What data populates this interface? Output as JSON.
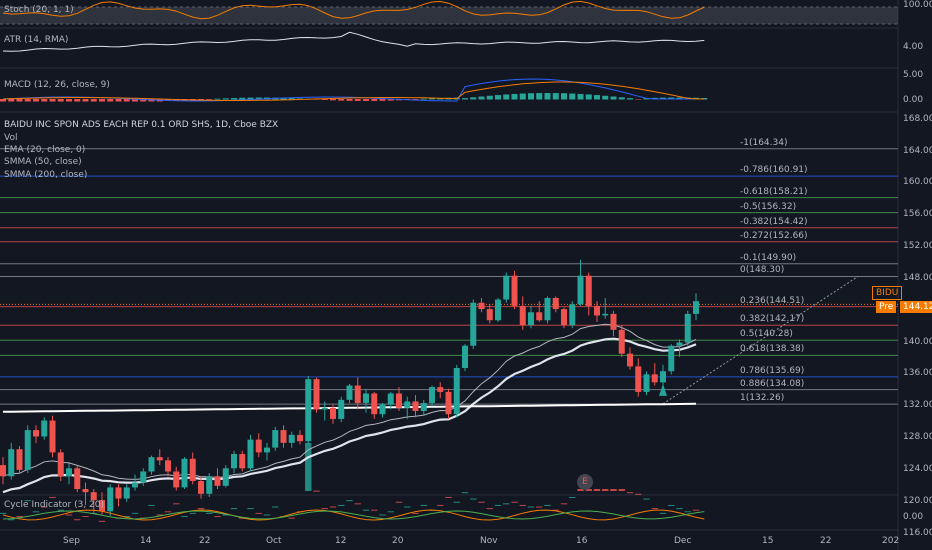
{
  "chart_data": {
    "type": "candlestick",
    "title": "BAIDU INC SPON ADS EACH REP 0.1 ORD SHS, 1D, Cboe BZX",
    "series_labels": [
      "Vol",
      "EMA (20, close, 0)",
      "SMMA (50, close)",
      "SMMA (200, close)"
    ],
    "price_axis": {
      "min": 114,
      "max": 170,
      "ticks": [
        "168.00",
        "164.00",
        "160.00",
        "156.00",
        "152.00",
        "148.00",
        "144.00",
        "140.00",
        "136.00",
        "132.00",
        "128.00",
        "124.00",
        "120.00",
        "116.00"
      ]
    },
    "x_ticks": [
      "Sep",
      "14",
      "22",
      "Oct",
      "12",
      "20",
      "Nov",
      "16",
      "Dec",
      "15",
      "22",
      "202"
    ],
    "ohlc": [
      [
        124.6,
        125.6,
        122.2,
        123.2
      ],
      [
        123.2,
        127.4,
        122.8,
        126.6
      ],
      [
        126.6,
        127.0,
        123.6,
        124.0
      ],
      [
        124.0,
        129.6,
        123.6,
        129.0
      ],
      [
        129.0,
        129.6,
        127.4,
        128.2
      ],
      [
        128.2,
        130.6,
        127.8,
        130.2
      ],
      [
        130.2,
        130.8,
        125.6,
        126.2
      ],
      [
        126.2,
        126.6,
        122.6,
        123.2
      ],
      [
        123.2,
        124.8,
        122.2,
        124.2
      ],
      [
        124.2,
        124.6,
        121.2,
        121.6
      ],
      [
        121.6,
        122.4,
        119.6,
        121.2
      ],
      [
        121.2,
        121.6,
        118.6,
        120.2
      ],
      [
        120.2,
        121.2,
        118.4,
        118.8
      ],
      [
        118.8,
        122.2,
        118.2,
        121.8
      ],
      [
        121.8,
        122.2,
        119.4,
        120.4
      ],
      [
        120.4,
        122.2,
        120.0,
        121.8
      ],
      [
        121.8,
        123.4,
        121.4,
        122.4
      ],
      [
        122.4,
        124.2,
        122.0,
        123.8
      ],
      [
        123.8,
        125.8,
        123.4,
        125.6
      ],
      [
        125.6,
        126.6,
        124.6,
        125.2
      ],
      [
        125.2,
        125.6,
        123.2,
        123.8
      ],
      [
        123.8,
        124.4,
        121.4,
        121.8
      ],
      [
        121.8,
        125.6,
        121.6,
        125.4
      ],
      [
        125.4,
        126.2,
        122.2,
        122.6
      ],
      [
        122.6,
        123.2,
        120.4,
        121.0
      ],
      [
        121.0,
        123.6,
        120.6,
        123.2
      ],
      [
        123.2,
        124.2,
        121.6,
        122.0
      ],
      [
        122.0,
        124.6,
        121.8,
        124.2
      ],
      [
        124.2,
        126.4,
        123.6,
        126.0
      ],
      [
        126.0,
        126.4,
        123.8,
        124.2
      ],
      [
        124.2,
        128.4,
        123.8,
        127.8
      ],
      [
        127.8,
        128.6,
        125.6,
        126.2
      ],
      [
        126.2,
        127.4,
        125.2,
        126.8
      ],
      [
        126.8,
        129.4,
        126.4,
        129.0
      ],
      [
        129.0,
        129.6,
        126.8,
        127.4
      ],
      [
        127.4,
        128.8,
        126.8,
        128.4
      ],
      [
        128.4,
        129.0,
        127.2,
        127.6
      ],
      [
        127.6,
        135.8,
        127.2,
        135.4
      ],
      [
        135.4,
        135.6,
        131.2,
        131.6
      ],
      [
        131.6,
        132.6,
        130.2,
        131.8
      ],
      [
        131.8,
        132.2,
        129.8,
        130.4
      ],
      [
        130.4,
        133.2,
        130.0,
        132.8
      ],
      [
        132.8,
        134.8,
        132.4,
        134.6
      ],
      [
        134.6,
        135.6,
        131.6,
        132.4
      ],
      [
        132.4,
        134.2,
        131.2,
        133.6
      ],
      [
        133.6,
        133.8,
        130.4,
        131.0
      ],
      [
        131.0,
        132.4,
        130.6,
        132.2
      ],
      [
        132.2,
        133.8,
        131.6,
        133.6
      ],
      [
        133.6,
        134.4,
        131.4,
        131.8
      ],
      [
        131.8,
        133.2,
        130.4,
        132.6
      ],
      [
        132.6,
        133.4,
        130.6,
        131.4
      ],
      [
        131.4,
        132.8,
        130.8,
        132.4
      ],
      [
        132.4,
        134.6,
        132.0,
        134.4
      ],
      [
        134.4,
        135.0,
        133.0,
        133.8
      ],
      [
        133.8,
        134.2,
        130.4,
        131.0
      ],
      [
        131.0,
        137.2,
        130.6,
        136.8
      ],
      [
        136.8,
        139.8,
        136.4,
        139.6
      ],
      [
        139.6,
        145.4,
        139.2,
        145.0
      ],
      [
        145.0,
        145.6,
        143.8,
        144.2
      ],
      [
        144.2,
        144.8,
        142.4,
        142.8
      ],
      [
        142.8,
        145.6,
        142.6,
        145.4
      ],
      [
        145.4,
        148.8,
        145.0,
        148.4
      ],
      [
        148.4,
        149.0,
        144.2,
        144.6
      ],
      [
        144.6,
        145.8,
        141.6,
        142.2
      ],
      [
        142.2,
        144.6,
        141.8,
        143.8
      ],
      [
        143.8,
        145.2,
        142.6,
        142.8
      ],
      [
        142.8,
        145.8,
        142.4,
        145.6
      ],
      [
        145.6,
        145.8,
        143.8,
        144.2
      ],
      [
        144.2,
        144.4,
        141.8,
        142.2
      ],
      [
        142.2,
        145.2,
        141.8,
        144.8
      ],
      [
        144.8,
        150.4,
        144.6,
        148.4
      ],
      [
        148.4,
        148.8,
        143.4,
        144.6
      ],
      [
        144.6,
        145.2,
        142.6,
        143.4
      ],
      [
        143.4,
        145.6,
        143.0,
        143.6
      ],
      [
        143.6,
        144.0,
        140.8,
        141.6
      ],
      [
        141.6,
        142.2,
        138.2,
        138.6
      ],
      [
        138.6,
        139.4,
        136.6,
        137.0
      ],
      [
        137.0,
        138.0,
        133.2,
        133.8
      ],
      [
        133.8,
        136.4,
        133.4,
        136.0
      ],
      [
        136.0,
        137.4,
        134.6,
        135.0
      ],
      [
        135.0,
        137.2,
        134.2,
        136.4
      ],
      [
        136.4,
        139.8,
        136.0,
        139.6
      ],
      [
        139.6,
        140.4,
        138.2,
        140.0
      ],
      [
        140.0,
        144.0,
        139.6,
        143.6
      ],
      [
        143.6,
        146.2,
        142.8,
        145.2
      ]
    ],
    "volume": [
      [
        118.6,
        true
      ],
      [
        117.8,
        true
      ],
      [
        118.2,
        false
      ],
      [
        120.2,
        true
      ],
      [
        118.8,
        true
      ],
      [
        119.4,
        false
      ],
      [
        120.6,
        false
      ],
      [
        119.0,
        true
      ],
      [
        118.4,
        false
      ],
      [
        117.8,
        false
      ],
      [
        118.2,
        false
      ],
      [
        118.6,
        true
      ],
      [
        117.6,
        false
      ],
      [
        119.4,
        true
      ],
      [
        118.0,
        false
      ],
      [
        118.2,
        true
      ],
      [
        118.6,
        true
      ],
      [
        118.0,
        false
      ],
      [
        119.6,
        true
      ],
      [
        118.4,
        false
      ],
      [
        118.8,
        false
      ],
      [
        119.8,
        false
      ],
      [
        118.2,
        true
      ],
      [
        118.6,
        true
      ],
      [
        119.2,
        false
      ],
      [
        118.6,
        true
      ],
      [
        118.2,
        false
      ],
      [
        118.4,
        true
      ],
      [
        119.2,
        true
      ],
      [
        118.0,
        false
      ],
      [
        119.2,
        true
      ],
      [
        118.6,
        false
      ],
      [
        118.4,
        true
      ],
      [
        119.4,
        true
      ],
      [
        118.2,
        false
      ],
      [
        118.0,
        false
      ],
      [
        118.8,
        false
      ],
      [
        127.4,
        true
      ],
      [
        121.4,
        false
      ],
      [
        119.2,
        false
      ],
      [
        119.4,
        false
      ],
      [
        119.6,
        true
      ],
      [
        120.2,
        true
      ],
      [
        119.8,
        false
      ],
      [
        119.0,
        true
      ],
      [
        119.0,
        false
      ],
      [
        118.4,
        true
      ],
      [
        118.8,
        true
      ],
      [
        120.0,
        false
      ],
      [
        119.4,
        true
      ],
      [
        118.6,
        false
      ],
      [
        119.6,
        true
      ],
      [
        119.0,
        true
      ],
      [
        119.6,
        false
      ],
      [
        120.6,
        false
      ],
      [
        120.0,
        true
      ],
      [
        121.2,
        true
      ],
      [
        120.4,
        true
      ],
      [
        120.0,
        false
      ],
      [
        119.2,
        false
      ],
      [
        119.6,
        true
      ],
      [
        119.8,
        true
      ],
      [
        120.0,
        false
      ],
      [
        119.6,
        false
      ],
      [
        119.4,
        true
      ],
      [
        119.4,
        false
      ],
      [
        119.6,
        true
      ],
      [
        119.0,
        false
      ],
      [
        119.8,
        false
      ],
      [
        120.6,
        true
      ],
      [
        121.6,
        false
      ],
      [
        121.6,
        false
      ],
      [
        121.6,
        false
      ],
      [
        121.6,
        false
      ],
      [
        121.6,
        false
      ],
      [
        121.6,
        false
      ],
      [
        121.2,
        false
      ],
      [
        121.0,
        false
      ],
      [
        120.4,
        true
      ],
      [
        119.2,
        false
      ],
      [
        118.6,
        true
      ],
      [
        119.6,
        true
      ],
      [
        119.2,
        true
      ],
      [
        118.8,
        true
      ],
      [
        119.0,
        false
      ]
    ],
    "fib_levels": [
      {
        "label": "-1(164.34)",
        "value": 164.34,
        "color": "#9598a1"
      },
      {
        "label": "-0.786(160.91)",
        "value": 160.91,
        "color": "#2962ff"
      },
      {
        "label": "-0.618(158.21)",
        "value": 158.21,
        "color": "#4caf50"
      },
      {
        "label": "-0.5(156.32)",
        "value": 156.32,
        "color": "#4caf50"
      },
      {
        "label": "-0.382(154.42)",
        "value": 154.42,
        "color": "#ef5350"
      },
      {
        "label": "-0.272(152.66)",
        "value": 152.66,
        "color": "#ef5350"
      },
      {
        "label": "-0.1(149.90)",
        "value": 149.9,
        "color": "#9598a1"
      },
      {
        "label": "0(148.30)",
        "value": 148.3,
        "color": "#9598a1"
      },
      {
        "label": "0.236(144.51)",
        "value": 144.51,
        "color": "#ef5350"
      },
      {
        "label": "0.382(142.17)",
        "value": 142.17,
        "color": "#ef5350"
      },
      {
        "label": "0.5(140.28)",
        "value": 140.28,
        "color": "#4caf50"
      },
      {
        "label": "0.618(138.38)",
        "value": 138.38,
        "color": "#4caf50"
      },
      {
        "label": "0.786(135.69)",
        "value": 135.69,
        "color": "#2962ff"
      },
      {
        "label": "0.886(134.08)",
        "value": 134.08,
        "color": "#9598a1"
      },
      {
        "label": "1(132.26)",
        "value": 132.26,
        "color": "#9598a1"
      }
    ],
    "price_tags": [
      {
        "label": "BIDU",
        "value": "",
        "price": 144.8,
        "color": "#f57c00"
      },
      {
        "label": "Pre",
        "value": "144.12",
        "price": 143.3,
        "color": "#f57c00"
      }
    ],
    "panels": {
      "stoch": {
        "label": "Stoch (20, 1, 1)",
        "ticks": [
          "100.00"
        ],
        "range": [
          0,
          100
        ]
      },
      "atr": {
        "label": "ATR (14, RMA)",
        "ticks": [
          "4.00"
        ],
        "range": [
          2.5,
          5.0
        ]
      },
      "macd": {
        "label": "MACD (12, 26, close, 9)",
        "ticks": [
          "5.00",
          "0.00"
        ],
        "range": [
          -2.0,
          5.5
        ]
      },
      "cycle": {
        "label": "Cycle Indicator (3, 20)",
        "ticks": [
          "0.00"
        ],
        "range": [
          -1.2,
          1.8
        ]
      }
    },
    "colors": {
      "up": "#26a69a",
      "down": "#ef5350",
      "ema": "#b2b5be",
      "smma50": "#e0e3eb",
      "smma200": "#ffffff",
      "background": "#131722"
    }
  },
  "ui": {
    "event_badge": "E",
    "tv_logo": "TV"
  }
}
